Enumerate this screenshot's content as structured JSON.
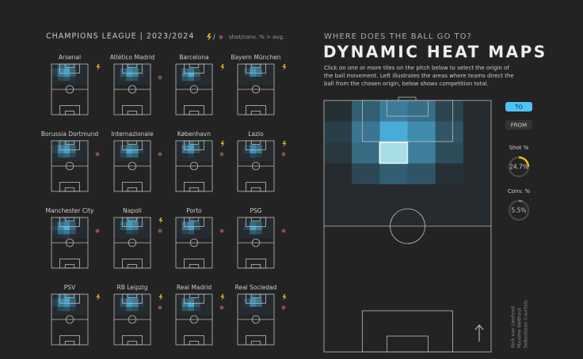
{
  "header": {
    "title": "CHAMPIONS LEAGUE | 2023/2024",
    "legend": "shot/conv. % > avg."
  },
  "teams": [
    {
      "name": "Arsenal",
      "shot_above_avg": true,
      "conv_above_avg": false
    },
    {
      "name": "Atlético Madrid",
      "shot_above_avg": false,
      "conv_above_avg": true
    },
    {
      "name": "Barcelona",
      "shot_above_avg": true,
      "conv_above_avg": false
    },
    {
      "name": "Bayern München",
      "shot_above_avg": true,
      "conv_above_avg": false
    },
    {
      "name": "Borussia Dortmund",
      "shot_above_avg": false,
      "conv_above_avg": true
    },
    {
      "name": "Internazionale",
      "shot_above_avg": false,
      "conv_above_avg": true
    },
    {
      "name": "København",
      "shot_above_avg": true,
      "conv_above_avg": true
    },
    {
      "name": "Lazio",
      "shot_above_avg": true,
      "conv_above_avg": true
    },
    {
      "name": "Manchester City",
      "shot_above_avg": false,
      "conv_above_avg": true
    },
    {
      "name": "Napoli",
      "shot_above_avg": true,
      "conv_above_avg": true
    },
    {
      "name": "Porto",
      "shot_above_avg": false,
      "conv_above_avg": true
    },
    {
      "name": "PSG",
      "shot_above_avg": false,
      "conv_above_avg": true
    },
    {
      "name": "PSV",
      "shot_above_avg": true,
      "conv_above_avg": false
    },
    {
      "name": "RB Leipzig",
      "shot_above_avg": true,
      "conv_above_avg": true
    },
    {
      "name": "Real Madrid",
      "shot_above_avg": true,
      "conv_above_avg": true
    },
    {
      "name": "Real Sociedad",
      "shot_above_avg": true,
      "conv_above_avg": true
    }
  ],
  "panel": {
    "kicker": "WHERE DOES THE BALL GO TO?",
    "title": "DYNAMIC HEAT MAPS",
    "description": [
      "Click on one or more tiles on the pitch below to select the origin of",
      "the ball movement. Left illustrates the areas where teams direct the",
      "ball from the chosen origin, below shows competition total."
    ]
  },
  "buttons": [
    "TO",
    "FROM"
  ],
  "gauges": [
    {
      "label": "Shot %",
      "value": 24.7,
      "value_label": "24.7%",
      "color": "#e8b923"
    },
    {
      "label": "Conv. %",
      "value": 5.5,
      "value_label": "5.5%",
      "color": "#b0607e"
    }
  ],
  "credits": [
    "Rick van Lieshout",
    "Maxime Wethaut",
    "Sebastiaan Courtois"
  ]
}
